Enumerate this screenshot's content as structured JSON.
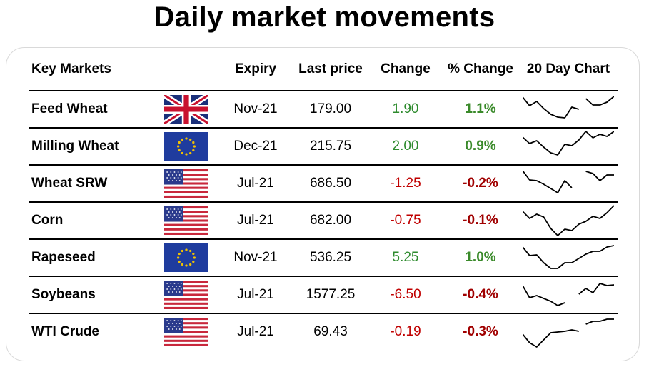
{
  "title": "Daily market movements",
  "headers": {
    "markets": "Key Markets",
    "expiry": "Expiry",
    "last_price": "Last price",
    "change": "Change",
    "pct_change": "% Change",
    "chart": "20 Day Chart"
  },
  "colors": {
    "positive": "#2e8b2e",
    "negative": "#c00000"
  },
  "rows": [
    {
      "name": "Feed Wheat",
      "flag": "uk-flag-icon",
      "expiry": "Nov-21",
      "price": "179.00",
      "change": "1.90",
      "pct": "1.1%",
      "dir": "pos",
      "spark": [
        [
          0,
          6
        ],
        [
          1,
          18
        ],
        [
          2,
          12
        ],
        [
          3,
          22
        ],
        [
          4,
          30
        ],
        [
          5,
          34
        ],
        [
          6,
          35
        ],
        [
          7,
          20
        ],
        [
          8,
          23
        ],
        null,
        [
          9,
          8
        ],
        [
          10,
          17
        ],
        [
          11,
          17
        ],
        [
          12,
          13
        ],
        [
          13,
          5
        ]
      ]
    },
    {
      "name": "Milling Wheat",
      "flag": "eu-flag-icon",
      "expiry": "Dec-21",
      "price": "215.75",
      "change": "2.00",
      "pct": "0.9%",
      "dir": "pos",
      "spark": [
        [
          0,
          10
        ],
        [
          1,
          19
        ],
        [
          2,
          15
        ],
        [
          3,
          24
        ],
        [
          4,
          32
        ],
        [
          5,
          35
        ],
        [
          6,
          20
        ],
        [
          7,
          22
        ],
        [
          8,
          14
        ],
        [
          9,
          2
        ],
        [
          10,
          11
        ],
        [
          11,
          6
        ],
        [
          12,
          9
        ],
        [
          13,
          2
        ]
      ]
    },
    {
      "name": "Wheat SRW",
      "flag": "us-flag-icon",
      "expiry": "Jul-21",
      "price": "686.50",
      "change": "-1.25",
      "pct": "-0.2%",
      "dir": "neg",
      "spark": [
        [
          0,
          5
        ],
        [
          1,
          18
        ],
        [
          2,
          19
        ],
        [
          3,
          24
        ],
        [
          4,
          30
        ],
        [
          5,
          36
        ],
        [
          6,
          19
        ],
        [
          7,
          29
        ],
        null,
        [
          9,
          6
        ],
        [
          10,
          9
        ],
        [
          11,
          19
        ],
        [
          12,
          11
        ],
        [
          13,
          11
        ]
      ]
    },
    {
      "name": "Corn",
      "flag": "us-flag-icon",
      "expiry": "Jul-21",
      "price": "682.00",
      "change": "-0.75",
      "pct": "-0.1%",
      "dir": "neg",
      "spark": [
        [
          0,
          10
        ],
        [
          1,
          20
        ],
        [
          2,
          14
        ],
        [
          3,
          18
        ],
        [
          4,
          34
        ],
        [
          5,
          44
        ],
        [
          6,
          35
        ],
        [
          7,
          37
        ],
        [
          8,
          28
        ],
        [
          9,
          24
        ],
        [
          10,
          17
        ],
        [
          11,
          20
        ],
        [
          12,
          12
        ],
        [
          13,
          2
        ]
      ]
    },
    {
      "name": "Rapeseed",
      "flag": "eu-flag-icon",
      "expiry": "Nov-21",
      "price": "536.25",
      "change": "5.25",
      "pct": "1.0%",
      "dir": "pos",
      "spark": [
        [
          0,
          8
        ],
        [
          1,
          20
        ],
        [
          2,
          19
        ],
        [
          3,
          30
        ],
        [
          4,
          38
        ],
        [
          5,
          38
        ],
        [
          6,
          30
        ],
        [
          7,
          30
        ],
        [
          8,
          24
        ],
        [
          9,
          18
        ],
        [
          10,
          14
        ],
        [
          11,
          14
        ],
        [
          12,
          8
        ],
        [
          13,
          6
        ]
      ]
    },
    {
      "name": "Soybeans",
      "flag": "us-flag-icon",
      "expiry": "Jul-21",
      "price": "1577.25",
      "change": "-6.50",
      "pct": "-0.4%",
      "dir": "neg",
      "spark": [
        [
          0,
          10
        ],
        [
          1,
          27
        ],
        [
          2,
          24
        ],
        [
          3,
          28
        ],
        [
          4,
          32
        ],
        [
          5,
          38
        ],
        [
          6,
          34
        ],
        null,
        [
          8,
          22
        ],
        [
          9,
          14
        ],
        [
          10,
          20
        ],
        [
          11,
          7
        ],
        [
          12,
          10
        ],
        [
          13,
          9
        ]
      ]
    },
    {
      "name": "WTI Crude",
      "flag": "us-flag-icon",
      "expiry": "Jul-21",
      "price": "69.43",
      "change": "-0.19",
      "pct": "-0.3%",
      "dir": "neg",
      "spark": [
        [
          0,
          26
        ],
        [
          1,
          38
        ],
        [
          2,
          44
        ],
        [
          3,
          34
        ],
        [
          4,
          24
        ],
        [
          5,
          23
        ],
        [
          6,
          22
        ],
        [
          7,
          20
        ],
        [
          8,
          22
        ],
        null,
        [
          9,
          12
        ],
        [
          10,
          8
        ],
        [
          11,
          8
        ],
        [
          12,
          5
        ],
        [
          13,
          5
        ]
      ]
    }
  ]
}
